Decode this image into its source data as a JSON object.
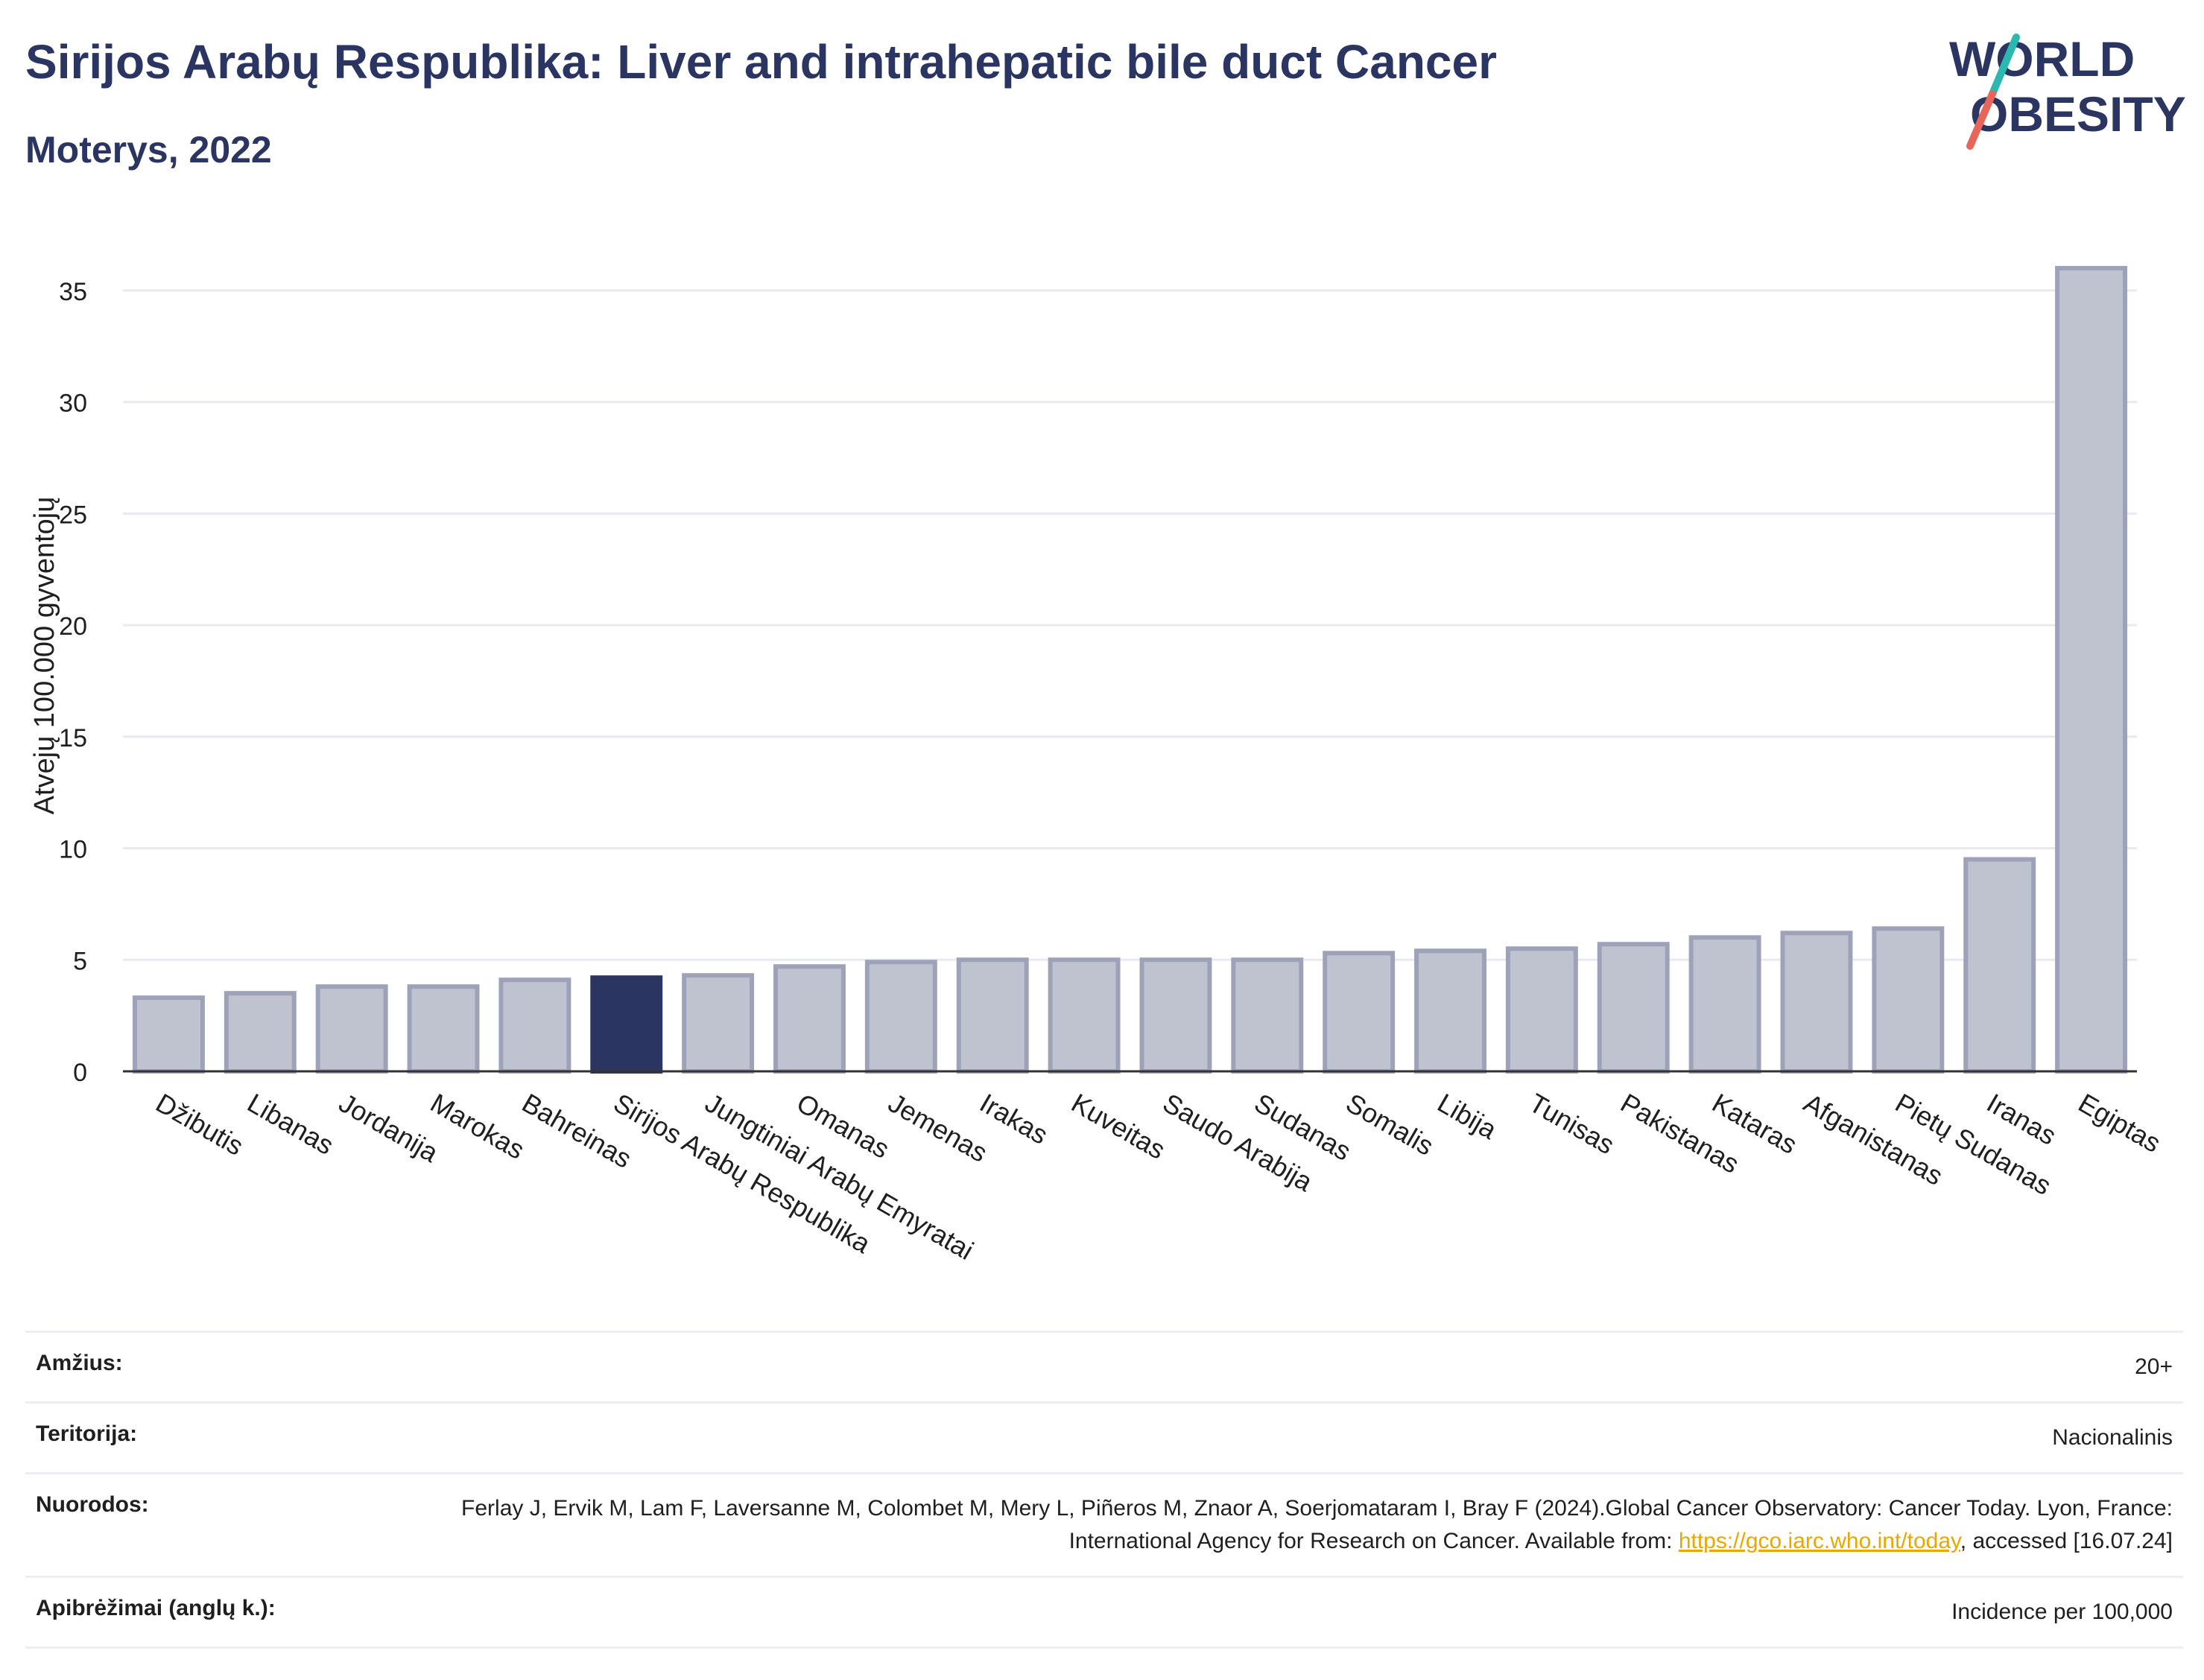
{
  "header": {
    "title": "Sirijos Arabų Respublika: Liver and intrahepatic bile duct Cancer",
    "subtitle": "Moterys, 2022",
    "logo_line1": "WORLD",
    "logo_line2": "OBESITY"
  },
  "colors": {
    "highlight": "#2b3561",
    "bar_fill": "#bfc3d0",
    "bar_stroke": "#9da2b9",
    "title": "#2b3561",
    "link": "#e8a800",
    "logo_teal": "#2bb8b0",
    "logo_red": "#e8655a"
  },
  "chart_data": {
    "type": "bar",
    "ylabel": "Atvejų 100.000 gyventojų",
    "ylim": [
      0,
      37
    ],
    "yticks": [
      0,
      5,
      10,
      15,
      20,
      25,
      30,
      35
    ],
    "grid": true,
    "highlight": "Sirijos Arabų Respublika",
    "categories": [
      "Džibutis",
      "Libanas",
      "Jordanija",
      "Marokas",
      "Bahreinas",
      "Sirijos Arabų Respublika",
      "Jungtiniai Arabų Emyratai",
      "Omanas",
      "Jemenas",
      "Irakas",
      "Kuveitas",
      "Saudo Arabija",
      "Sudanas",
      "Somalis",
      "Libija",
      "Tunisas",
      "Pakistanas",
      "Kataras",
      "Afganistanas",
      "Pietų Sudanas",
      "Iranas",
      "Egiptas"
    ],
    "values": [
      3.3,
      3.5,
      3.8,
      3.8,
      4.1,
      4.2,
      4.3,
      4.7,
      4.9,
      5.0,
      5.0,
      5.0,
      5.0,
      5.3,
      5.4,
      5.5,
      5.7,
      6.0,
      6.2,
      6.4,
      9.5,
      36.0
    ]
  },
  "meta": {
    "age_label": "Amžius:",
    "age_value": "20+",
    "territory_label": "Teritorija:",
    "territory_value": "Nacionalinis",
    "refs_label": "Nuorodos:",
    "refs_text_1": "Ferlay J, Ervik M, Lam F, Laversanne M, Colombet M, Mery L, Piñeros M, Znaor A, Soerjomataram I, Bray F (2024).Global Cancer Observatory: Cancer Today. Lyon, France: International Agency for Research on Cancer. Available from: ",
    "refs_link": "https://gco.iarc.who.int/today",
    "refs_text_2": ", accessed [16.07.24]",
    "defs_label": "Apibrėžimai (anglų k.):",
    "defs_value": "Incidence per 100,000"
  }
}
